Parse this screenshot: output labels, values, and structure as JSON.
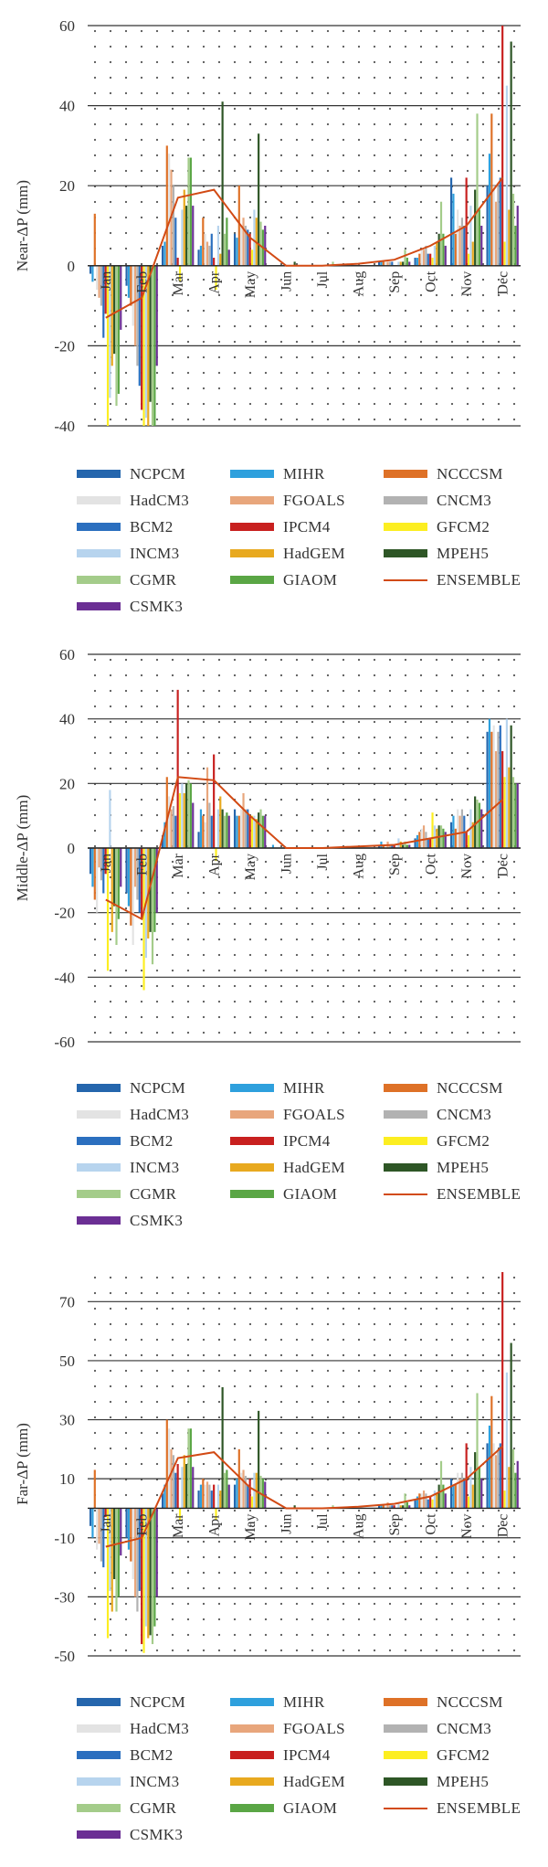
{
  "chart_data": [
    {
      "type": "bar",
      "ylabel": "Near-ΔP (mm)",
      "ylim": [
        -40,
        60
      ],
      "yticks": [
        -40,
        -20,
        0,
        20,
        40,
        60
      ],
      "grid": true,
      "legend_position": "bottom",
      "categories": [
        "Jan",
        "Feb",
        "Mar",
        "Apr",
        "May",
        "Jun",
        "Jul",
        "Aug",
        "Sep",
        "Oct",
        "Nov",
        "Dec"
      ],
      "series": [
        {
          "name": "NCPCM",
          "values": [
            -2,
            -5,
            5,
            4,
            8,
            0,
            0,
            0,
            1,
            2,
            22,
            20
          ]
        },
        {
          "name": "MIHR",
          "values": [
            -4,
            -8,
            6,
            5,
            7,
            0,
            0,
            0,
            1,
            2,
            18,
            28
          ]
        },
        {
          "name": "NCCCSM",
          "values": [
            13,
            -10,
            30,
            12,
            20,
            0,
            0,
            0,
            1,
            3,
            8,
            38
          ]
        },
        {
          "name": "HadCM3",
          "values": [
            -6,
            -15,
            28,
            8,
            10,
            0,
            0,
            0,
            1,
            4,
            14,
            20
          ]
        },
        {
          "name": "FGOALS",
          "values": [
            -8,
            -20,
            24,
            6,
            12,
            0,
            0,
            0,
            1,
            4,
            10,
            16
          ]
        },
        {
          "name": "CNCM3",
          "values": [
            -10,
            -25,
            20,
            5,
            10,
            0,
            0,
            0,
            1,
            5,
            12,
            20
          ]
        },
        {
          "name": "BCM2",
          "values": [
            -18,
            -30,
            12,
            8,
            9,
            0,
            0,
            0,
            1,
            3,
            10,
            22
          ]
        },
        {
          "name": "IPCM4",
          "values": [
            -12,
            -36,
            2,
            2,
            8,
            0,
            0,
            0,
            0,
            3,
            22,
            60
          ]
        },
        {
          "name": "GFCM2",
          "values": [
            -40,
            -40,
            -4,
            -6,
            4,
            0,
            0,
            0,
            0,
            2,
            3,
            6
          ]
        },
        {
          "name": "INCM3",
          "values": [
            -33,
            -38,
            14,
            10,
            14,
            0,
            0,
            0,
            1,
            5,
            15,
            45
          ]
        },
        {
          "name": "HadGEM",
          "values": [
            -25,
            -40,
            19,
            3,
            12,
            0,
            0,
            0,
            1,
            6,
            6,
            14
          ]
        },
        {
          "name": "MPEH5",
          "values": [
            -22,
            -34,
            15,
            41,
            33,
            1,
            0,
            0,
            1,
            8,
            19,
            56
          ]
        },
        {
          "name": "CGMR",
          "values": [
            -35,
            -40,
            27,
            8,
            11,
            0,
            1,
            0,
            4,
            16,
            38,
            18
          ]
        },
        {
          "name": "GIAOM",
          "values": [
            -32,
            -40,
            27,
            12,
            9,
            0,
            0,
            0,
            2,
            8,
            14,
            10
          ]
        },
        {
          "name": "CSMK3",
          "values": [
            -16,
            -25,
            15,
            4,
            10,
            0,
            0,
            0,
            1,
            5,
            10,
            15
          ]
        }
      ],
      "ensemble": {
        "name": "ENSEMBLE",
        "values": [
          -13,
          -8,
          17,
          19,
          7,
          0,
          0,
          0.5,
          1.5,
          5,
          10,
          22
        ]
      }
    },
    {
      "type": "bar",
      "ylabel": "Middle-ΔP (mm)",
      "ylim": [
        -60,
        60
      ],
      "yticks": [
        -60,
        -40,
        -20,
        0,
        20,
        40,
        60
      ],
      "grid": true,
      "legend_position": "bottom",
      "categories": [
        "Jan",
        "Feb",
        "Mar",
        "Apr",
        "May",
        "Jun",
        "Jul",
        "Aug",
        "Sep",
        "Oct",
        "Nov",
        "Dec"
      ],
      "series": [
        {
          "name": "NCPCM",
          "values": [
            -8,
            -14,
            4,
            5,
            12,
            0,
            0,
            0,
            1,
            3,
            8,
            36
          ]
        },
        {
          "name": "MIHR",
          "values": [
            -12,
            -18,
            8,
            12,
            10,
            1,
            0,
            0,
            2,
            4,
            10,
            40
          ]
        },
        {
          "name": "NCCCSM",
          "values": [
            -16,
            -24,
            22,
            10,
            10,
            0,
            0,
            0,
            1,
            5,
            6,
            36
          ]
        },
        {
          "name": "HadCM3",
          "values": [
            -20,
            -30,
            16,
            8,
            12,
            0,
            0,
            0,
            1,
            6,
            12,
            38
          ]
        },
        {
          "name": "FGOALS",
          "values": [
            -6,
            -12,
            12,
            25,
            17,
            0,
            0,
            0,
            2,
            7,
            10,
            30
          ]
        },
        {
          "name": "CNCM3",
          "values": [
            -10,
            -16,
            13,
            14,
            12,
            0,
            0,
            0,
            1,
            5,
            12,
            36
          ]
        },
        {
          "name": "BCM2",
          "values": [
            -14,
            -20,
            10,
            10,
            12,
            0,
            0,
            0,
            1,
            3,
            10,
            38
          ]
        },
        {
          "name": "IPCM4",
          "values": [
            -8,
            -22,
            49,
            29,
            10,
            0,
            0,
            0,
            1,
            3,
            5,
            30
          ]
        },
        {
          "name": "GFCM2",
          "values": [
            -38,
            -44,
            17,
            -4,
            10,
            0,
            0,
            0,
            0,
            11,
            4,
            22
          ]
        },
        {
          "name": "INCM3",
          "values": [
            18,
            -34,
            20,
            12,
            10,
            0,
            0,
            0,
            3,
            7,
            12,
            40
          ]
        },
        {
          "name": "HadGEM",
          "values": [
            -26,
            -28,
            17,
            16,
            9,
            0,
            0,
            0,
            2,
            6,
            8,
            25
          ]
        },
        {
          "name": "MPEH5",
          "values": [
            -18,
            -26,
            20,
            12,
            11,
            0,
            0,
            0,
            1,
            7,
            16,
            38
          ]
        },
        {
          "name": "CGMR",
          "values": [
            -30,
            -36,
            21,
            10,
            12,
            0,
            0,
            0,
            2,
            7,
            15,
            22
          ]
        },
        {
          "name": "GIAOM",
          "values": [
            -22,
            -26,
            20,
            11,
            10,
            0,
            0,
            0,
            1,
            6,
            14,
            20
          ]
        },
        {
          "name": "CSMK3",
          "values": [
            -12,
            -20,
            14,
            10,
            10,
            0,
            0,
            0,
            1,
            5,
            12,
            20
          ]
        }
      ],
      "ensemble": {
        "name": "ENSEMBLE",
        "values": [
          -16,
          -22,
          22,
          21,
          10,
          0,
          0,
          0.5,
          1,
          3,
          5,
          15
        ]
      }
    },
    {
      "type": "bar",
      "ylabel": "Far-ΔP (mm)",
      "ylim": [
        -50,
        80
      ],
      "yticks": [
        -50,
        -30,
        -10,
        10,
        30,
        50,
        70
      ],
      "grid": true,
      "legend_position": "bottom",
      "categories": [
        "Jan",
        "Feb",
        "Mar",
        "Apr",
        "May",
        "Jun",
        "Jul",
        "Aug",
        "Sep",
        "Oct",
        "Nov",
        "Dec"
      ],
      "series": [
        {
          "name": "NCPCM",
          "values": [
            -6,
            -10,
            5,
            6,
            8,
            0,
            0,
            0,
            1,
            3,
            10,
            22
          ]
        },
        {
          "name": "MIHR",
          "values": [
            -10,
            -14,
            8,
            8,
            10,
            0,
            0,
            0,
            1,
            4,
            8,
            28
          ]
        },
        {
          "name": "NCCCSM",
          "values": [
            13,
            -18,
            30,
            10,
            20,
            0,
            0,
            0,
            1,
            5,
            8,
            38
          ]
        },
        {
          "name": "HadCM3",
          "values": [
            -14,
            -24,
            27,
            8,
            12,
            0,
            0,
            0,
            1,
            5,
            12,
            22
          ]
        },
        {
          "name": "FGOALS",
          "values": [
            -12,
            -30,
            20,
            9,
            13,
            0,
            0,
            0,
            2,
            6,
            10,
            18
          ]
        },
        {
          "name": "CNCM3",
          "values": [
            -18,
            -35,
            18,
            8,
            11,
            0,
            0,
            0,
            1,
            5,
            12,
            20
          ]
        },
        {
          "name": "BCM2",
          "values": [
            -20,
            -28,
            12,
            6,
            8,
            0,
            0,
            0,
            1,
            3,
            10,
            22
          ]
        },
        {
          "name": "IPCM4",
          "values": [
            -3,
            -46,
            15,
            8,
            10,
            0,
            0,
            0,
            1,
            4,
            22,
            80
          ]
        },
        {
          "name": "GFCM2",
          "values": [
            -44,
            -49,
            -4,
            -4,
            4,
            0,
            0,
            0,
            0,
            3,
            4,
            6
          ]
        },
        {
          "name": "INCM3",
          "values": [
            -28,
            -40,
            14,
            8,
            12,
            0,
            0,
            0,
            2,
            6,
            14,
            46
          ]
        },
        {
          "name": "HadGEM",
          "values": [
            -35,
            -44,
            18,
            6,
            12,
            0,
            0,
            0,
            1,
            5,
            8,
            14
          ]
        },
        {
          "name": "MPEH5",
          "values": [
            -24,
            -43,
            15,
            41,
            33,
            1,
            0,
            0,
            1,
            8,
            19,
            56
          ]
        },
        {
          "name": "CGMR",
          "values": [
            -35,
            -46,
            27,
            12,
            11,
            0,
            1,
            0,
            5,
            16,
            39,
            20
          ]
        },
        {
          "name": "GIAOM",
          "values": [
            -30,
            -40,
            27,
            13,
            10,
            0,
            0,
            0,
            2,
            8,
            14,
            12
          ]
        },
        {
          "name": "CSMK3",
          "values": [
            -16,
            -30,
            14,
            8,
            9,
            0,
            0,
            0,
            1,
            5,
            10,
            16
          ]
        }
      ],
      "ensemble": {
        "name": "ENSEMBLE",
        "values": [
          -13,
          -10,
          17,
          19,
          7,
          0,
          0,
          0.5,
          1.5,
          4,
          10,
          21
        ]
      }
    }
  ],
  "legend": [
    {
      "name": "NCPCM",
      "color": "#2566ad",
      "kind": "bar"
    },
    {
      "name": "MIHR",
      "color": "#2ea0dd",
      "kind": "bar"
    },
    {
      "name": "NCCCSM",
      "color": "#de7127",
      "kind": "bar"
    },
    {
      "name": "HadCM3",
      "color": "#e3e3e3",
      "kind": "bar"
    },
    {
      "name": "FGOALS",
      "color": "#e8a67c",
      "kind": "bar"
    },
    {
      "name": "CNCM3",
      "color": "#b2b2b2",
      "kind": "bar"
    },
    {
      "name": "BCM2",
      "color": "#2b6fbf",
      "kind": "bar"
    },
    {
      "name": "IPCM4",
      "color": "#c8201f",
      "kind": "bar"
    },
    {
      "name": "GFCM2",
      "color": "#fcee21",
      "kind": "bar"
    },
    {
      "name": "INCM3",
      "color": "#b7d4ee",
      "kind": "bar"
    },
    {
      "name": "HadGEM",
      "color": "#e8a91f",
      "kind": "bar"
    },
    {
      "name": "MPEH5",
      "color": "#2e5626",
      "kind": "bar"
    },
    {
      "name": "CGMR",
      "color": "#a4cc8a",
      "kind": "bar"
    },
    {
      "name": "GIAOM",
      "color": "#5aa645",
      "kind": "bar"
    },
    {
      "name": "ENSEMBLE",
      "color": "#d24a14",
      "kind": "line"
    },
    {
      "name": "CSMK3",
      "color": "#6b2f94",
      "kind": "bar"
    }
  ]
}
